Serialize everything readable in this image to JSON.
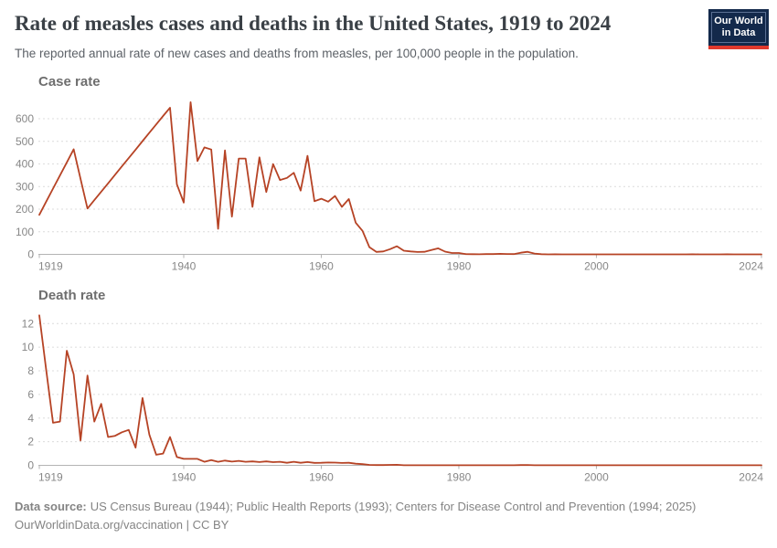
{
  "header": {
    "title": "Rate of measles cases and deaths in the United States, 1919 to 2024",
    "subtitle": "The reported annual rate of new cases and deaths from measles, per 100,000 people in the population."
  },
  "logo": {
    "line1": "Our World",
    "line2": "in Data"
  },
  "footer": {
    "source_label": "Data source:",
    "source_text": "US Census Bureau (1944); Public Health Reports (1993); Centers for Disease Control and Prevention (1994; 2025)",
    "attribution": "OurWorldinData.org/vaccination | CC BY"
  },
  "colors": {
    "line": "#b64325",
    "logo_bg": "#13294b",
    "logo_bar": "#e0392d",
    "grid": "#dcdcdc",
    "axis": "#b3b3b3",
    "tick_text": "#878787"
  },
  "chart_data": [
    {
      "type": "line",
      "title": "Case rate",
      "unit": "cases per 100,000 people",
      "x_start": 1919,
      "x_end": 2024,
      "x_interval": 1,
      "xticks": [
        1919,
        1940,
        1960,
        1980,
        2000,
        2024
      ],
      "yticks": [
        0,
        100,
        200,
        300,
        400,
        500,
        600
      ],
      "ylim": [
        0,
        700
      ],
      "grid": "horizontal-dashed",
      "legend": "none",
      "line_color": "#b64325",
      "values": [
        175,
        233,
        291,
        349,
        407,
        465,
        334,
        203,
        240,
        277,
        314,
        352,
        389,
        426,
        463,
        501,
        538,
        575,
        612,
        649,
        310,
        229,
        673,
        413,
        473,
        464,
        113,
        460,
        167,
        424,
        424,
        210,
        429,
        276,
        399,
        329,
        338,
        361,
        282,
        436,
        235,
        246,
        233,
        258,
        210,
        245,
        140,
        104,
        32,
        11,
        13,
        23,
        36,
        16,
        13,
        10.5,
        11.3,
        19,
        26.5,
        12.3,
        6.2,
        6,
        1.4,
        0.7,
        0.6,
        1.1,
        1.2,
        2.6,
        1.5,
        1.4,
        7.3,
        11.2,
        3.8,
        0.9,
        0.12,
        0.37,
        0.12,
        0.19,
        0.05,
        0.04,
        0.04,
        0.03,
        0.04,
        0.02,
        0.02,
        0.01,
        0.02,
        0.02,
        0.01,
        0.05,
        0.02,
        0.02,
        0.07,
        0.02,
        0.06,
        0.21,
        0.06,
        0.03,
        0.04,
        0.12,
        0.39,
        0.04,
        0.02,
        0.04,
        0.02,
        0.08
      ]
    },
    {
      "type": "line",
      "title": "Death rate",
      "unit": "deaths per 100,000 people",
      "x_start": 1919,
      "x_end": 2024,
      "x_interval": 1,
      "xticks": [
        1919,
        1940,
        1960,
        1980,
        2000,
        2024
      ],
      "yticks": [
        0,
        2,
        4,
        6,
        8,
        10,
        12
      ],
      "ylim": [
        0,
        13
      ],
      "grid": "horizontal-dashed",
      "legend": "none",
      "line_color": "#b64325",
      "values": [
        12.7,
        8.1,
        3.6,
        3.7,
        9.7,
        7.7,
        2.1,
        7.6,
        3.7,
        5.2,
        2.4,
        2.5,
        2.8,
        3.0,
        1.5,
        5.7,
        2.6,
        0.9,
        1.0,
        2.4,
        0.7,
        0.55,
        0.55,
        0.55,
        0.3,
        0.45,
        0.3,
        0.4,
        0.32,
        0.38,
        0.3,
        0.33,
        0.28,
        0.33,
        0.27,
        0.3,
        0.22,
        0.3,
        0.22,
        0.28,
        0.21,
        0.22,
        0.24,
        0.23,
        0.2,
        0.22,
        0.14,
        0.1,
        0.04,
        0.02,
        0.02,
        0.04,
        0.05,
        0.01,
        0.01,
        0.01,
        0.01,
        0.01,
        0.01,
        0.01,
        0.01,
        0.01,
        0.01,
        0.01,
        0.01,
        0.01,
        0.01,
        0.01,
        0.01,
        0.01,
        0.02,
        0.03,
        0.01,
        0.01,
        0.01,
        0.01,
        0.01,
        0.01,
        0.01,
        0.01,
        0.01,
        0.01,
        0.01,
        0.01,
        0.01,
        0.01,
        0.01,
        0.01,
        0.01,
        0.01,
        0.01,
        0.01,
        0.01,
        0.01,
        0.01,
        0.01,
        0.01,
        0.01,
        0.01,
        0.01,
        0.01,
        0.01,
        0.01,
        0.01,
        0.01,
        0.01
      ]
    }
  ]
}
